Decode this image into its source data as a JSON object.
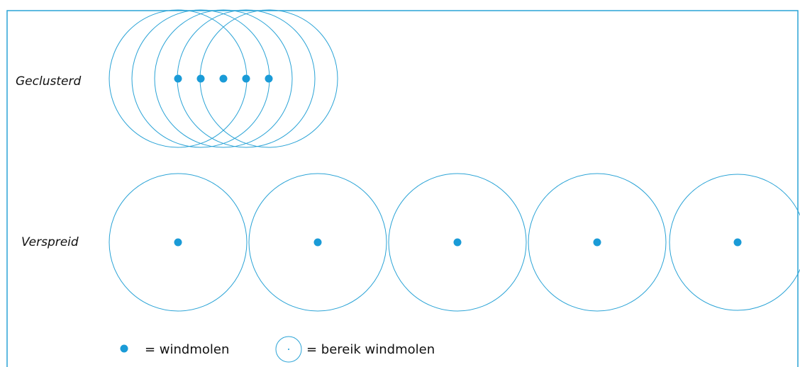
{
  "rows": [
    {
      "label": "Geclusterd"
    },
    {
      "label": "Verspreid"
    }
  ],
  "legend": [
    {
      "label": "= windmolen"
    },
    {
      "label": "= bereik windmolen"
    }
  ]
}
